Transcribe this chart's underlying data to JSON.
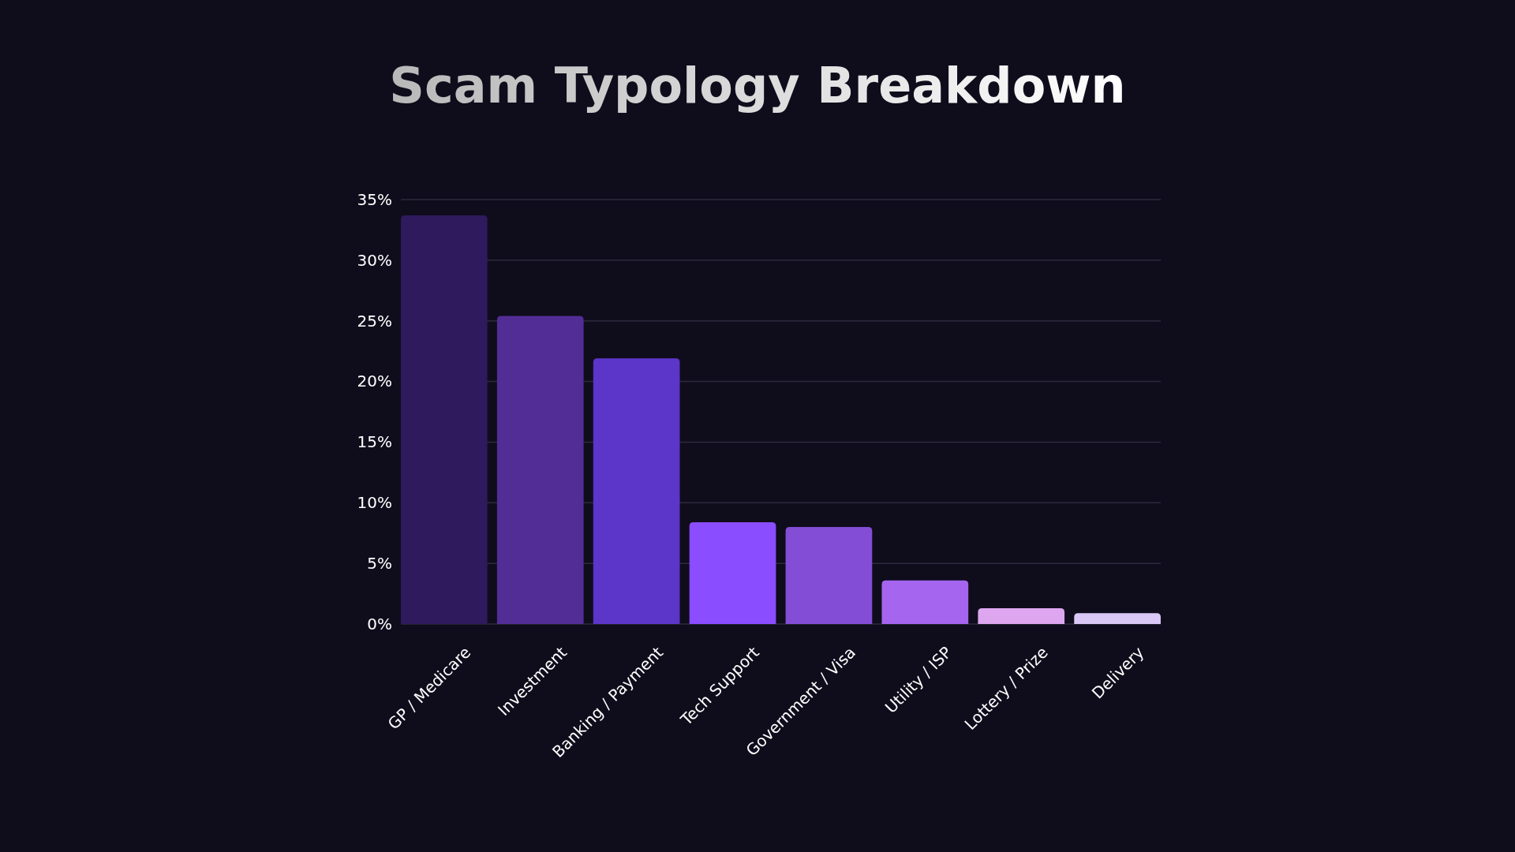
{
  "chart_data": {
    "type": "bar",
    "title": "Scam Typology Breakdown",
    "categories": [
      "GP / Medicare",
      "Investment",
      "Banking / Payment",
      "Tech Support",
      "Government / Visa",
      "Utility / ISP",
      "Lottery / Prize",
      "Delivery"
    ],
    "values": [
      33.7,
      25.4,
      21.9,
      8.4,
      8.0,
      3.6,
      1.3,
      0.9
    ],
    "colors": [
      "#2e1a5c",
      "#522d96",
      "#5c35c9",
      "#8a4dff",
      "#844dd6",
      "#a565ee",
      "#dda6ef",
      "#d9c7f5"
    ],
    "ylim": [
      0,
      35
    ],
    "yticks": [
      {
        "value": 0,
        "label": "0%"
      },
      {
        "value": 5,
        "label": "5%"
      },
      {
        "value": 10,
        "label": "10%"
      },
      {
        "value": 15,
        "label": "15%"
      },
      {
        "value": 20,
        "label": "20%"
      },
      {
        "value": 25,
        "label": "25%"
      },
      {
        "value": 30,
        "label": "30%"
      },
      {
        "value": 35,
        "label": "35%"
      }
    ],
    "grid": "y"
  }
}
